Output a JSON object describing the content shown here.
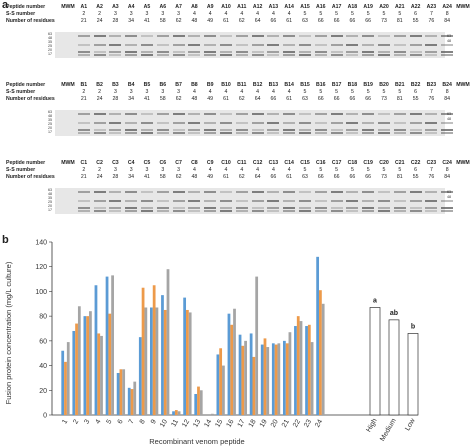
{
  "panel_a_label": "a",
  "panel_b_label": "b",
  "gel_rows": [
    {
      "peptide_label": "Peptide number",
      "ss_label": "S-S number",
      "residue_label": "Number of residues",
      "lanes": [
        "MWM",
        "A1",
        "A2",
        "A3",
        "A4",
        "A5",
        "A6",
        "A7",
        "A8",
        "A9",
        "A10",
        "A11",
        "A12",
        "A13",
        "A14",
        "A15",
        "A16",
        "A17",
        "A18",
        "A19",
        "A20",
        "A21",
        "A22",
        "A23",
        "A24",
        "MWM"
      ],
      "ss": [
        "",
        "2",
        "2",
        "3",
        "3",
        "3",
        "3",
        "3",
        "4",
        "4",
        "4",
        "4",
        "4",
        "4",
        "4",
        "5",
        "5",
        "5",
        "5",
        "5",
        "5",
        "5",
        "6",
        "7",
        "8",
        ""
      ],
      "residues": [
        "",
        "21",
        "24",
        "28",
        "34",
        "41",
        "58",
        "62",
        "48",
        "49",
        "61",
        "62",
        "64",
        "66",
        "61",
        "63",
        "66",
        "66",
        "66",
        "66",
        "73",
        "81",
        "55",
        "76",
        "84",
        ""
      ],
      "mw_top": [
        "63",
        "48"
      ],
      "mw_bottom": [
        "35",
        "25",
        "20",
        "17"
      ]
    },
    {
      "peptide_label": "Peptide number",
      "ss_label": "S-S number",
      "residue_label": "Number of residues",
      "lanes": [
        "MWM",
        "B1",
        "B2",
        "B3",
        "B4",
        "B5",
        "B6",
        "B7",
        "B8",
        "B9",
        "B10",
        "B11",
        "B12",
        "B13",
        "B14",
        "B15",
        "B16",
        "B17",
        "B18",
        "B19",
        "B20",
        "B21",
        "B22",
        "B23",
        "B24",
        "MWM"
      ],
      "ss": [
        "",
        "2",
        "2",
        "3",
        "3",
        "3",
        "3",
        "3",
        "4",
        "4",
        "4",
        "4",
        "4",
        "4",
        "4",
        "5",
        "5",
        "5",
        "5",
        "5",
        "5",
        "5",
        "6",
        "7",
        "8",
        ""
      ],
      "residues": [
        "",
        "21",
        "24",
        "28",
        "34",
        "41",
        "58",
        "62",
        "48",
        "49",
        "61",
        "62",
        "64",
        "66",
        "61",
        "63",
        "66",
        "66",
        "66",
        "66",
        "73",
        "81",
        "55",
        "76",
        "84",
        ""
      ],
      "mw_top": [
        "63",
        "48"
      ],
      "mw_bottom": [
        "35",
        "25",
        "20",
        "17"
      ]
    },
    {
      "peptide_label": "Peptide number",
      "ss_label": "S-S number",
      "residue_label": "Number of residues",
      "lanes": [
        "MWM",
        "C1",
        "C2",
        "C3",
        "C4",
        "C5",
        "C6",
        "C7",
        "C8",
        "C9",
        "C10",
        "C11",
        "C12",
        "C13",
        "C14",
        "C15",
        "C16",
        "C17",
        "C18",
        "C19",
        "C20",
        "C21",
        "C22",
        "C23",
        "C24",
        "MWM"
      ],
      "ss": [
        "",
        "2",
        "2",
        "3",
        "3",
        "3",
        "3",
        "3",
        "4",
        "4",
        "4",
        "4",
        "4",
        "4",
        "4",
        "5",
        "5",
        "5",
        "5",
        "5",
        "5",
        "5",
        "6",
        "7",
        "8",
        ""
      ],
      "residues": [
        "",
        "21",
        "24",
        "28",
        "34",
        "41",
        "58",
        "62",
        "48",
        "49",
        "61",
        "62",
        "64",
        "66",
        "61",
        "63",
        "66",
        "66",
        "66",
        "66",
        "73",
        "81",
        "55",
        "76",
        "84",
        ""
      ],
      "mw_top": [
        "63",
        "48"
      ],
      "mw_bottom": [
        "35",
        "25",
        "20",
        "17"
      ]
    }
  ],
  "chart_data": {
    "type": "bar",
    "ylabel": "Fusion protein concentration (mg/L culture)",
    "xlabel": "Recombinant venom peptide",
    "ylim": [
      0,
      140
    ],
    "yticks": [
      0,
      20,
      40,
      60,
      80,
      100,
      120,
      140
    ],
    "categories": [
      "1",
      "2",
      "3",
      "4",
      "5",
      "6",
      "7",
      "8",
      "9",
      "10",
      "11",
      "12",
      "13",
      "14",
      "15",
      "16",
      "17",
      "18",
      "19",
      "20",
      "21",
      "22",
      "23",
      "24"
    ],
    "series": [
      {
        "color": "#5b9bd5",
        "values": [
          52,
          68,
          80,
          105,
          112,
          34,
          22,
          63,
          87,
          97,
          3,
          95,
          17,
          0,
          49,
          82,
          65,
          66,
          57,
          58,
          60,
          72,
          72,
          128
        ]
      },
      {
        "color": "#ed9a4a",
        "values": [
          43,
          74,
          80,
          66,
          82,
          37,
          21,
          103,
          105,
          85,
          4,
          85,
          23,
          0,
          54,
          73,
          56,
          47,
          62,
          57,
          58,
          80,
          73,
          101
        ]
      },
      {
        "color": "#a5a5a5",
        "values": [
          59,
          88,
          84,
          64,
          113,
          37,
          27,
          87,
          87,
          118,
          3,
          83,
          20,
          1,
          40,
          86,
          60,
          112,
          55,
          58,
          67,
          76,
          59,
          90
        ]
      }
    ],
    "summary": {
      "categories": [
        "High",
        "Medium",
        "Low"
      ],
      "values": [
        87,
        77,
        66
      ],
      "letters": [
        "a",
        "ab",
        "b"
      ]
    }
  },
  "colors": {
    "series_blue": "#5b9bd5",
    "series_orange": "#ed9a4a",
    "series_gray": "#a5a5a5"
  }
}
